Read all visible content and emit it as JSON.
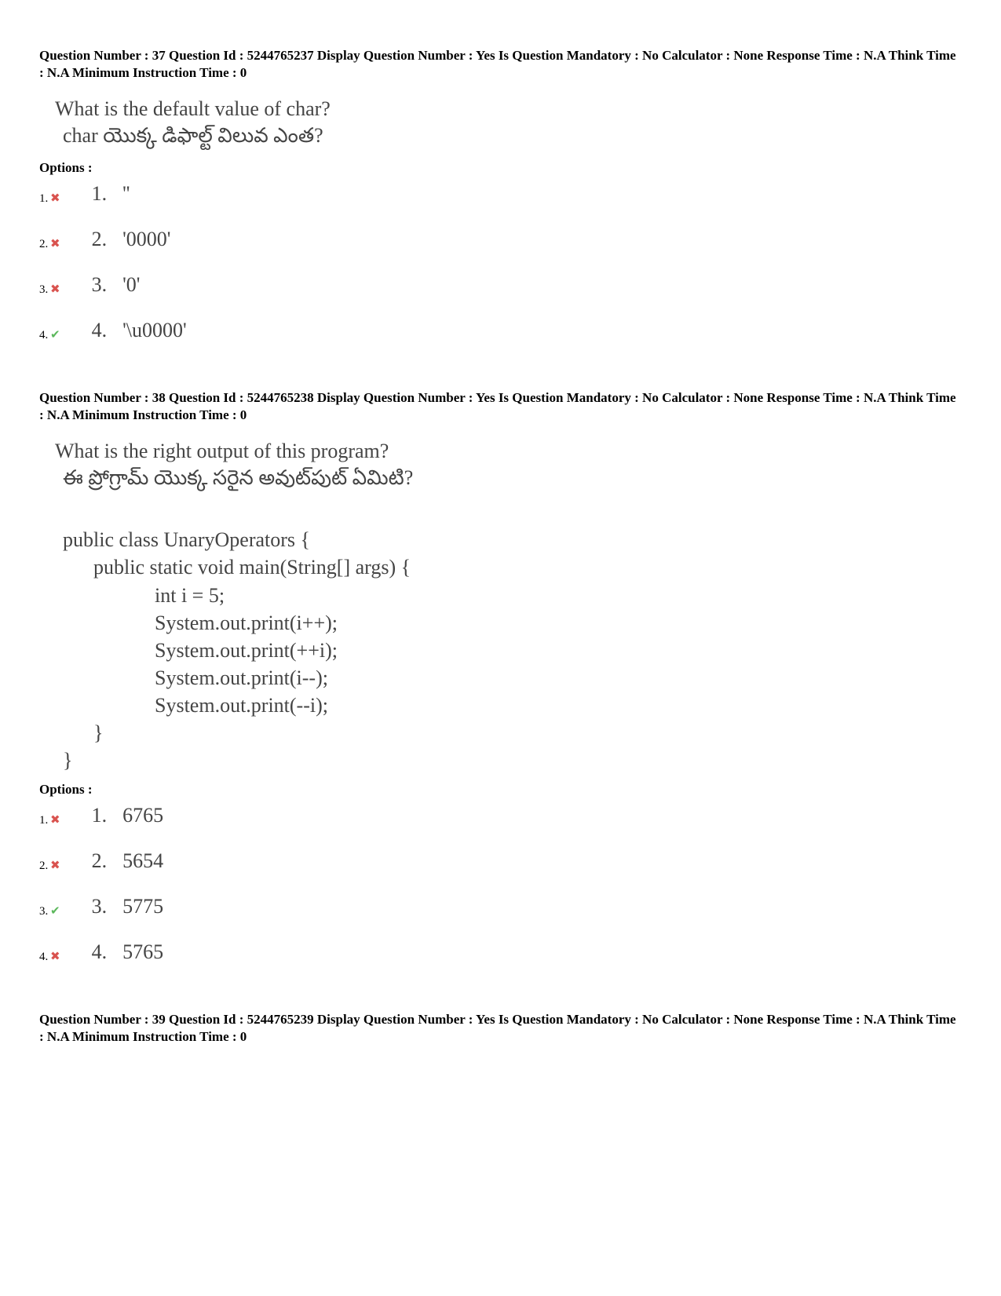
{
  "questions": [
    {
      "meta": "Question Number : 37 Question Id : 5244765237 Display Question Number : Yes Is Question Mandatory : No Calculator : None Response Time : N.A Think Time : N.A Minimum Instruction Time : 0",
      "text_en": "What is the default value of char?",
      "text_te": "char యొక్క డిఫాల్ట్ విలువ ఎంత?",
      "options_label": "Options :",
      "options": [
        {
          "num": "1.",
          "mark": "✖",
          "mark_class": "wrong",
          "inner_num": "1.",
          "text": "''"
        },
        {
          "num": "2.",
          "mark": "✖",
          "mark_class": "wrong",
          "inner_num": "2.",
          "text": "'0000'"
        },
        {
          "num": "3.",
          "mark": "✖",
          "mark_class": "wrong",
          "inner_num": "3.",
          "text": "'0'"
        },
        {
          "num": "4.",
          "mark": "✔",
          "mark_class": "correct",
          "inner_num": "4.",
          "text": "'\\u0000'"
        }
      ]
    },
    {
      "meta": "Question Number : 38 Question Id : 5244765238 Display Question Number : Yes Is Question Mandatory : No Calculator : None Response Time : N.A Think Time : N.A Minimum Instruction Time : 0",
      "text_en": "What is the right output of this program?",
      "text_te": "ఈ ప్రోగ్రామ్ యొక్క సరైన అవుట్‌పుట్ ఏమిటి?",
      "code": "public class UnaryOperators {\n      public static void main(String[] args) {\n                  int i = 5;\n                  System.out.print(i++);\n                  System.out.print(++i);\n                  System.out.print(i--);\n                  System.out.print(--i);\n      }\n}",
      "options_label": "Options :",
      "options": [
        {
          "num": "1.",
          "mark": "✖",
          "mark_class": "wrong",
          "inner_num": "1.",
          "text": "6765"
        },
        {
          "num": "2.",
          "mark": "✖",
          "mark_class": "wrong",
          "inner_num": "2.",
          "text": "5654"
        },
        {
          "num": "3.",
          "mark": "✔",
          "mark_class": "correct",
          "inner_num": "3.",
          "text": "5775"
        },
        {
          "num": "4.",
          "mark": "✖",
          "mark_class": "wrong",
          "inner_num": "4.",
          "text": "5765"
        }
      ]
    },
    {
      "meta": "Question Number : 39 Question Id : 5244765239 Display Question Number : Yes Is Question Mandatory : No Calculator : None Response Time : N.A Think Time : N.A Minimum Instruction Time : 0"
    }
  ]
}
